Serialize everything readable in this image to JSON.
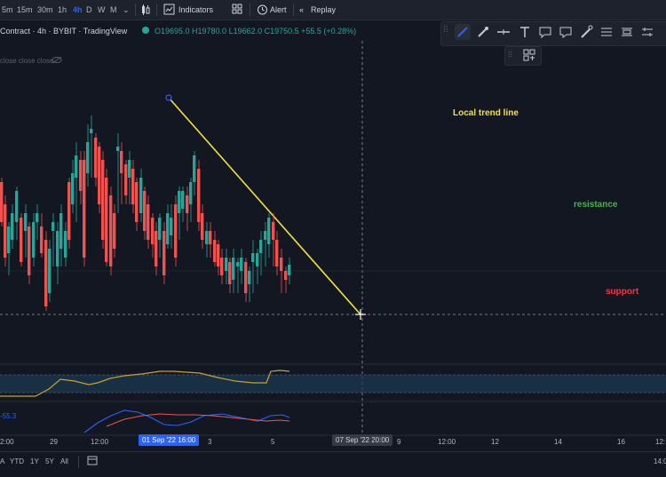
{
  "toolbar": {
    "timeframes": [
      "5m",
      "15m",
      "30m",
      "1h",
      "4h",
      "D",
      "W",
      "M"
    ],
    "active_timeframe": "4h",
    "indicators_label": "Indicators",
    "alert_label": "Alert",
    "replay_label": "Replay"
  },
  "legend": {
    "symbol": "Contract · 4h · BYBIT · TradingView",
    "ohlc": "O19695.0 H19780.0 L19662.0 C19750.5 +55.5 (+0.28%)",
    "indicator_hint": "close close close"
  },
  "annotations": {
    "trend": "Local trend line",
    "resistance": "resistance",
    "support": "support"
  },
  "colors": {
    "trend": "#f5e13c",
    "resistance": "#4caf50",
    "support": "#f23645",
    "bull": "#26a69a",
    "bear": "#ef5350"
  },
  "oscillator": {
    "value": "-55.3"
  },
  "x_axis": {
    "t1": "2:00",
    "t2": "29",
    "t3": "12:00",
    "cursor_date": "01 Sep '22   16:00",
    "t4": "3",
    "t5": "5",
    "cursor2": "07 Sep '22   20:00",
    "t6": "9",
    "t7": "12:00",
    "t8": "12",
    "t9": "14",
    "t10": "16",
    "t11": "12:"
  },
  "ranges": [
    "A",
    "YTD",
    "1Y",
    "5Y",
    "All"
  ],
  "clock": "14:0",
  "chart_data": {
    "type": "candlestick",
    "interval": "4h",
    "candle_colors": {
      "up": "#26a69a",
      "down": "#ef5350"
    }
  }
}
